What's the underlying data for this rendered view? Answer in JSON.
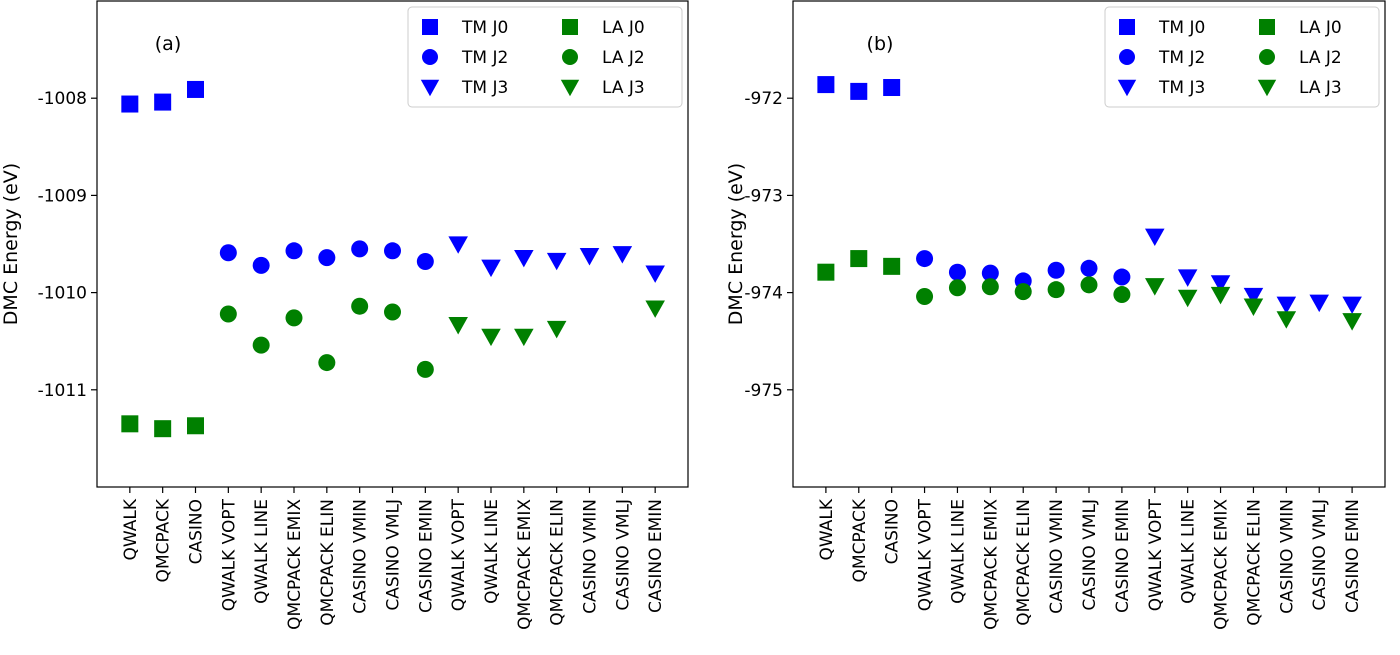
{
  "chart_data": [
    {
      "type": "scatter",
      "panel_label": "(a)",
      "ylabel": "DMC Energy (eV)",
      "xlabel": "",
      "ylim": [
        -1012.0,
        -1007.0
      ],
      "yticks": [
        -1008,
        -1009,
        -1010,
        -1011
      ],
      "grid": false,
      "legend": "top-right",
      "categories": [
        "QWALK",
        "QMCPACK",
        "CASINO",
        "QWALK VOPT",
        "QWALK LINE",
        "QMCPACK EMIX",
        "QMCPACK ELIN",
        "CASINO VMIN",
        "CASINO VMLJ",
        "CASINO EMIN",
        "QWALK VOPT",
        "QWALK LINE",
        "QMCPACK EMIX",
        "QMCPACK ELIN",
        "CASINO VMIN",
        "CASINO VMLJ",
        "CASINO EMIN"
      ],
      "series": [
        {
          "name": "TM J0",
          "color": "#0000ff",
          "marker": "square",
          "x": [
            0,
            1,
            2
          ],
          "y": [
            -1008.06,
            -1008.04,
            -1007.91
          ]
        },
        {
          "name": "TM J2",
          "color": "#0000ff",
          "marker": "circle",
          "x": [
            3,
            4,
            5,
            6,
            7,
            8,
            9
          ],
          "y": [
            -1009.59,
            -1009.72,
            -1009.57,
            -1009.64,
            -1009.55,
            -1009.57,
            -1009.68
          ]
        },
        {
          "name": "TM J3",
          "color": "#0000ff",
          "marker": "triangle-down",
          "x": [
            10,
            11,
            12,
            13,
            14,
            15,
            16
          ],
          "y": [
            -1009.5,
            -1009.74,
            -1009.64,
            -1009.67,
            -1009.62,
            -1009.6,
            -1009.8
          ]
        },
        {
          "name": "LA J0",
          "color": "#008000",
          "marker": "square",
          "x": [
            0,
            1,
            2
          ],
          "y": [
            -1011.35,
            -1011.4,
            -1011.37
          ]
        },
        {
          "name": "LA J2",
          "color": "#008000",
          "marker": "circle",
          "x": [
            3,
            4,
            5,
            6,
            7,
            8,
            9
          ],
          "y": [
            -1010.22,
            -1010.54,
            -1010.26,
            -1010.72,
            -1010.14,
            -1010.2,
            -1010.79
          ]
        },
        {
          "name": "LA J3",
          "color": "#008000",
          "marker": "triangle-down",
          "x": [
            10,
            11,
            12,
            13,
            16
          ],
          "y": [
            -1010.33,
            -1010.45,
            -1010.45,
            -1010.37,
            -1010.16
          ]
        }
      ]
    },
    {
      "type": "scatter",
      "panel_label": "(b)",
      "ylabel": "DMC Energy (eV)",
      "xlabel": "",
      "ylim": [
        -976.0,
        -971.0
      ],
      "yticks": [
        -972,
        -973,
        -974,
        -975
      ],
      "grid": false,
      "legend": "top-right",
      "categories": [
        "QWALK",
        "QMCPACK",
        "CASINO",
        "QWALK VOPT",
        "QWALK LINE",
        "QMCPACK EMIX",
        "QMCPACK ELIN",
        "CASINO VMIN",
        "CASINO VMLJ",
        "CASINO EMIN",
        "QWALK VOPT",
        "QWALK LINE",
        "QMCPACK EMIX",
        "QMCPACK ELIN",
        "CASINO VMIN",
        "CASINO VMLJ",
        "CASINO EMIN"
      ],
      "series": [
        {
          "name": "TM J0",
          "color": "#0000ff",
          "marker": "square",
          "x": [
            0,
            1,
            2
          ],
          "y": [
            -971.86,
            -971.93,
            -971.89
          ]
        },
        {
          "name": "TM J2",
          "color": "#0000ff",
          "marker": "circle",
          "x": [
            3,
            4,
            5,
            6,
            7,
            8,
            9
          ],
          "y": [
            -973.65,
            -973.79,
            -973.8,
            -973.88,
            -973.77,
            -973.75,
            -973.84
          ]
        },
        {
          "name": "TM J3",
          "color": "#0000ff",
          "marker": "triangle-down",
          "x": [
            10,
            11,
            12,
            13,
            14,
            15,
            16
          ],
          "y": [
            -973.42,
            -973.84,
            -973.9,
            -974.03,
            -974.12,
            -974.1,
            -974.12
          ]
        },
        {
          "name": "LA J0",
          "color": "#008000",
          "marker": "square",
          "x": [
            0,
            1,
            2
          ],
          "y": [
            -973.79,
            -973.65,
            -973.73
          ]
        },
        {
          "name": "LA J2",
          "color": "#008000",
          "marker": "circle",
          "x": [
            3,
            4,
            5,
            6,
            7,
            8,
            9
          ],
          "y": [
            -974.04,
            -973.95,
            -973.94,
            -973.99,
            -973.97,
            -973.92,
            -974.02
          ]
        },
        {
          "name": "LA J3",
          "color": "#008000",
          "marker": "triangle-down",
          "x": [
            10,
            11,
            12,
            13,
            14,
            16
          ],
          "y": [
            -973.93,
            -974.05,
            -974.02,
            -974.14,
            -974.27,
            -974.29
          ]
        }
      ]
    }
  ]
}
